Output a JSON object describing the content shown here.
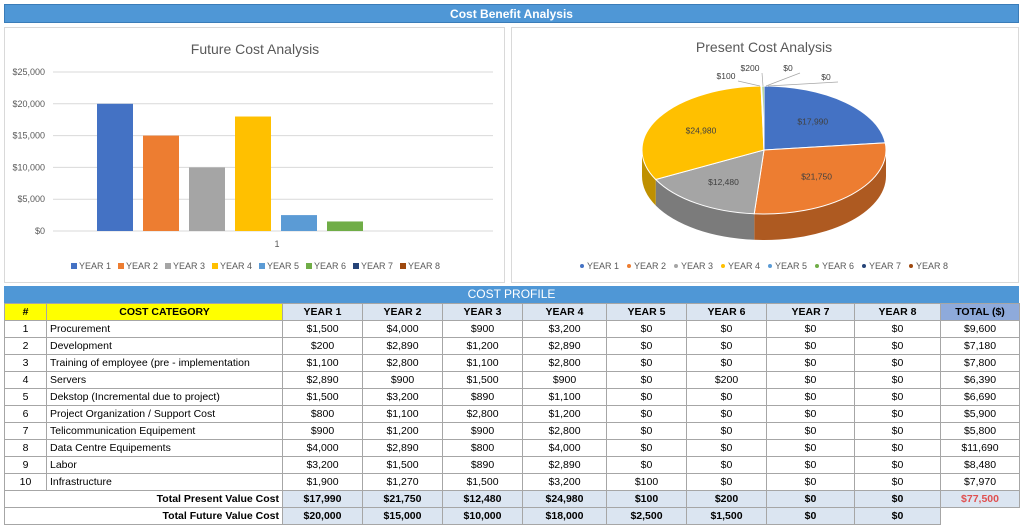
{
  "header": {
    "title": "Cost Benefit Analysis"
  },
  "colors": [
    "#4472c4",
    "#ed7d31",
    "#a5a5a5",
    "#ffc000",
    "#5b9bd5",
    "#70ad47",
    "#264478",
    "#9e480e"
  ],
  "chart_data": [
    {
      "type": "bar",
      "title": "Future Cost Analysis",
      "categories": [
        "1"
      ],
      "series": [
        {
          "name": "YEAR 1",
          "values": [
            20000
          ]
        },
        {
          "name": "YEAR 2",
          "values": [
            15000
          ]
        },
        {
          "name": "YEAR 3",
          "values": [
            10000
          ]
        },
        {
          "name": "YEAR 4",
          "values": [
            18000
          ]
        },
        {
          "name": "YEAR 5",
          "values": [
            2500
          ]
        },
        {
          "name": "YEAR 6",
          "values": [
            1500
          ]
        },
        {
          "name": "YEAR 7",
          "values": [
            0
          ]
        },
        {
          "name": "YEAR 8",
          "values": [
            0
          ]
        }
      ],
      "ylim": [
        0,
        25000
      ],
      "yticks": [
        "$25,000",
        "$20,000",
        "$15,000",
        "$10,000",
        "$5,000",
        "$0"
      ],
      "legend": "bottom",
      "grid": true
    },
    {
      "type": "pie",
      "title": "Present Cost Analysis",
      "labels": [
        "YEAR 1",
        "YEAR 2",
        "YEAR 3",
        "YEAR 4",
        "YEAR 5",
        "YEAR 6",
        "YEAR 7",
        "YEAR 8"
      ],
      "values": [
        17990,
        21750,
        12480,
        24980,
        100,
        200,
        0,
        0
      ],
      "value_labels": [
        "$17,990",
        "$21,750",
        "$12,480",
        "$24,980",
        "$100",
        "$200",
        "$0",
        "$0"
      ],
      "legend": "bottom"
    }
  ],
  "profile": {
    "title": "COST PROFILE",
    "headers": [
      "#",
      "COST CATEGORY",
      "YEAR 1",
      "YEAR 2",
      "YEAR 3",
      "YEAR 4",
      "YEAR 5",
      "YEAR 6",
      "YEAR 7",
      "YEAR 8",
      "TOTAL ($)"
    ],
    "rows": [
      [
        "1",
        "Procurement",
        "$1,500",
        "$4,000",
        "$900",
        "$3,200",
        "$0",
        "$0",
        "$0",
        "$0",
        "$9,600"
      ],
      [
        "2",
        "Development",
        "$200",
        "$2,890",
        "$1,200",
        "$2,890",
        "$0",
        "$0",
        "$0",
        "$0",
        "$7,180"
      ],
      [
        "3",
        "Training of employee (pre - implementation",
        "$1,100",
        "$2,800",
        "$1,100",
        "$2,800",
        "$0",
        "$0",
        "$0",
        "$0",
        "$7,800"
      ],
      [
        "4",
        "Servers",
        "$2,890",
        "$900",
        "$1,500",
        "$900",
        "$0",
        "$200",
        "$0",
        "$0",
        "$6,390"
      ],
      [
        "5",
        "Dekstop (Incremental due to project)",
        "$1,500",
        "$3,200",
        "$890",
        "$1,100",
        "$0",
        "$0",
        "$0",
        "$0",
        "$6,690"
      ],
      [
        "6",
        "Project Organization / Support Cost",
        "$800",
        "$1,100",
        "$2,800",
        "$1,200",
        "$0",
        "$0",
        "$0",
        "$0",
        "$5,900"
      ],
      [
        "7",
        "Telicommunication Equipement",
        "$900",
        "$1,200",
        "$900",
        "$2,800",
        "$0",
        "$0",
        "$0",
        "$0",
        "$5,800"
      ],
      [
        "8",
        "Data Centre Equipements",
        "$4,000",
        "$2,890",
        "$800",
        "$4,000",
        "$0",
        "$0",
        "$0",
        "$0",
        "$11,690"
      ],
      [
        "9",
        "Labor",
        "$3,200",
        "$1,500",
        "$890",
        "$2,890",
        "$0",
        "$0",
        "$0",
        "$0",
        "$8,480"
      ],
      [
        "10",
        "Infrastructure",
        "$1,900",
        "$1,270",
        "$1,500",
        "$3,200",
        "$100",
        "$0",
        "$0",
        "$0",
        "$7,970"
      ]
    ],
    "present": {
      "label": "Total Present Value Cost",
      "values": [
        "$17,990",
        "$21,750",
        "$12,480",
        "$24,980",
        "$100",
        "$200",
        "$0",
        "$0",
        "$77,500"
      ]
    },
    "future": {
      "label": "Total Future Value Cost",
      "values": [
        "$20,000",
        "$15,000",
        "$10,000",
        "$18,000",
        "$2,500",
        "$1,500",
        "$0",
        "$0"
      ]
    }
  }
}
